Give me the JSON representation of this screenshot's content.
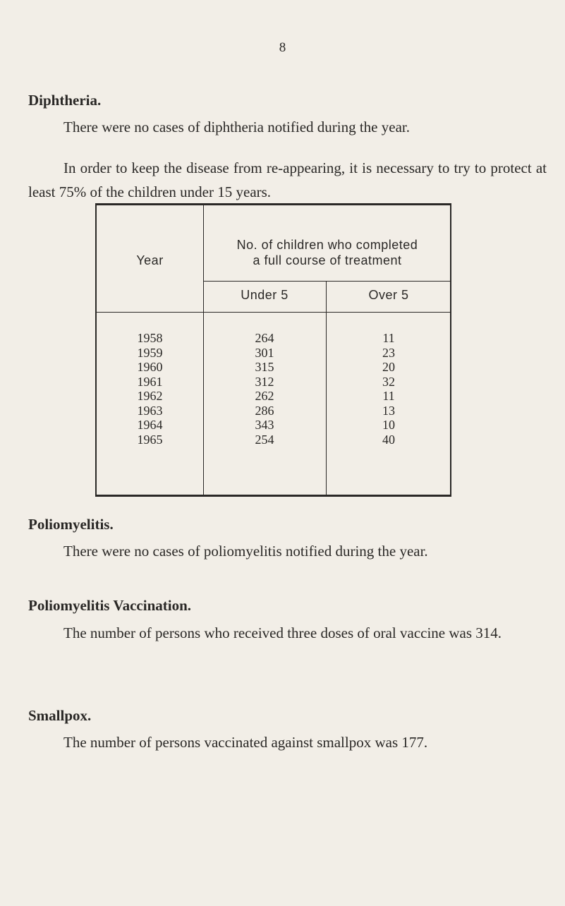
{
  "page_number": "8",
  "diphtheria": {
    "heading": "Diphtheria.",
    "para1": "There were no cases of diphtheria notified during the year.",
    "para2": "In order to keep the disease from re-appearing, it is necessary to try to protect at least 75% of the children under 15 years."
  },
  "table": {
    "year_header": "Year",
    "group_header_line1": "No. of children who completed",
    "group_header_line2": "a full course of treatment",
    "sub_headers": [
      "Under 5",
      "Over 5"
    ],
    "rows": [
      {
        "year": "1958",
        "under5": "264",
        "over5": "11"
      },
      {
        "year": "1959",
        "under5": "301",
        "over5": "23"
      },
      {
        "year": "1960",
        "under5": "315",
        "over5": "20"
      },
      {
        "year": "1961",
        "under5": "312",
        "over5": "32"
      },
      {
        "year": "1962",
        "under5": "262",
        "over5": "11"
      },
      {
        "year": "1963",
        "under5": "286",
        "over5": "13"
      },
      {
        "year": "1964",
        "under5": "343",
        "over5": "10"
      },
      {
        "year": "1965",
        "under5": "254",
        "over5": "40"
      }
    ]
  },
  "poliomyelitis": {
    "heading": "Poliomyelitis.",
    "para": "There were no cases of poliomyelitis notified during the year."
  },
  "polio_vaccination": {
    "heading": "Poliomyelitis Vaccination.",
    "para": "The number of persons who received three doses of oral vaccine was 314."
  },
  "smallpox": {
    "heading": "Smallpox.",
    "para": "The number of persons vaccinated against smallpox was 177."
  }
}
